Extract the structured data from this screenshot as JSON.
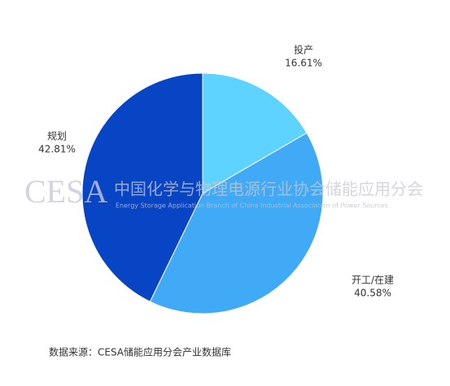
{
  "chart_data": {
    "type": "pie",
    "categories": [
      "投产",
      "开工/在建",
      "规划"
    ],
    "values": [
      16.61,
      40.58,
      42.81
    ],
    "value_labels": [
      "16.61%",
      "40.58%",
      "42.81%"
    ],
    "colors": [
      "#5fd3ff",
      "#40aaf6",
      "#0845c4"
    ],
    "watermark": {
      "logo": "CESA",
      "name": "中国化学与物理电源行业协会储能应用分会",
      "english": "Energy Storage Application Branch of China Industrial Association of Power Sources"
    },
    "source": "数据来源：CESA储能应用分会产业数据库"
  }
}
